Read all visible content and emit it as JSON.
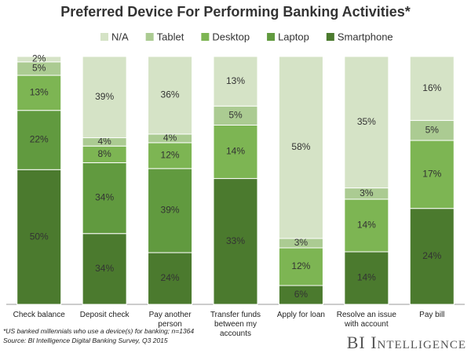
{
  "chart_data": {
    "type": "stacked-bar-100",
    "title": "Preferred Device For Performing Banking Activities*",
    "categories": [
      "Check balance",
      "Deposit check",
      "Pay another person",
      "Transfer funds between my accounts",
      "Apply for loan",
      "Resolve an issue with account",
      "Pay bill"
    ],
    "series": [
      {
        "name": "Smartphone",
        "color": "#4b7a2e",
        "values": [
          50,
          34,
          24,
          33,
          6,
          14,
          24
        ],
        "value_labels": [
          "50%",
          "34%",
          "24%",
          "33%",
          "6%",
          "14%",
          "24%"
        ]
      },
      {
        "name": "Laptop",
        "color": "#619a3f",
        "values": [
          22,
          34,
          39,
          null,
          null,
          null,
          null
        ],
        "value_labels": [
          "22%",
          "34%",
          "39%",
          null,
          null,
          null,
          null
        ]
      },
      {
        "name": "Desktop",
        "color": "#7db553",
        "values": [
          13,
          8,
          12,
          14,
          12,
          14,
          17
        ],
        "value_labels": [
          "13%",
          "8%",
          "12%",
          "14%",
          "12%",
          "14%",
          "17%"
        ]
      },
      {
        "name": "Tablet",
        "color": "#abcb92",
        "values": [
          5,
          4,
          4,
          5,
          3,
          3,
          5
        ],
        "value_labels": [
          "5%",
          "4%",
          "4%",
          "5%",
          "3%",
          "3%",
          "5%"
        ]
      },
      {
        "name": "N/A",
        "color": "#d5e3c6",
        "values": [
          2,
          39,
          36,
          13,
          58,
          35,
          16
        ],
        "value_labels": [
          "2%",
          "39%",
          "36%",
          "13%",
          "58%",
          "35%",
          "16%"
        ]
      }
    ],
    "footnote": "*US banked millennials who use a device(s) for banking; n=1364",
    "source": "Source: BI Intelligence Digital Banking Survey, Q3 2015",
    "brand": "BI Intelligence"
  }
}
